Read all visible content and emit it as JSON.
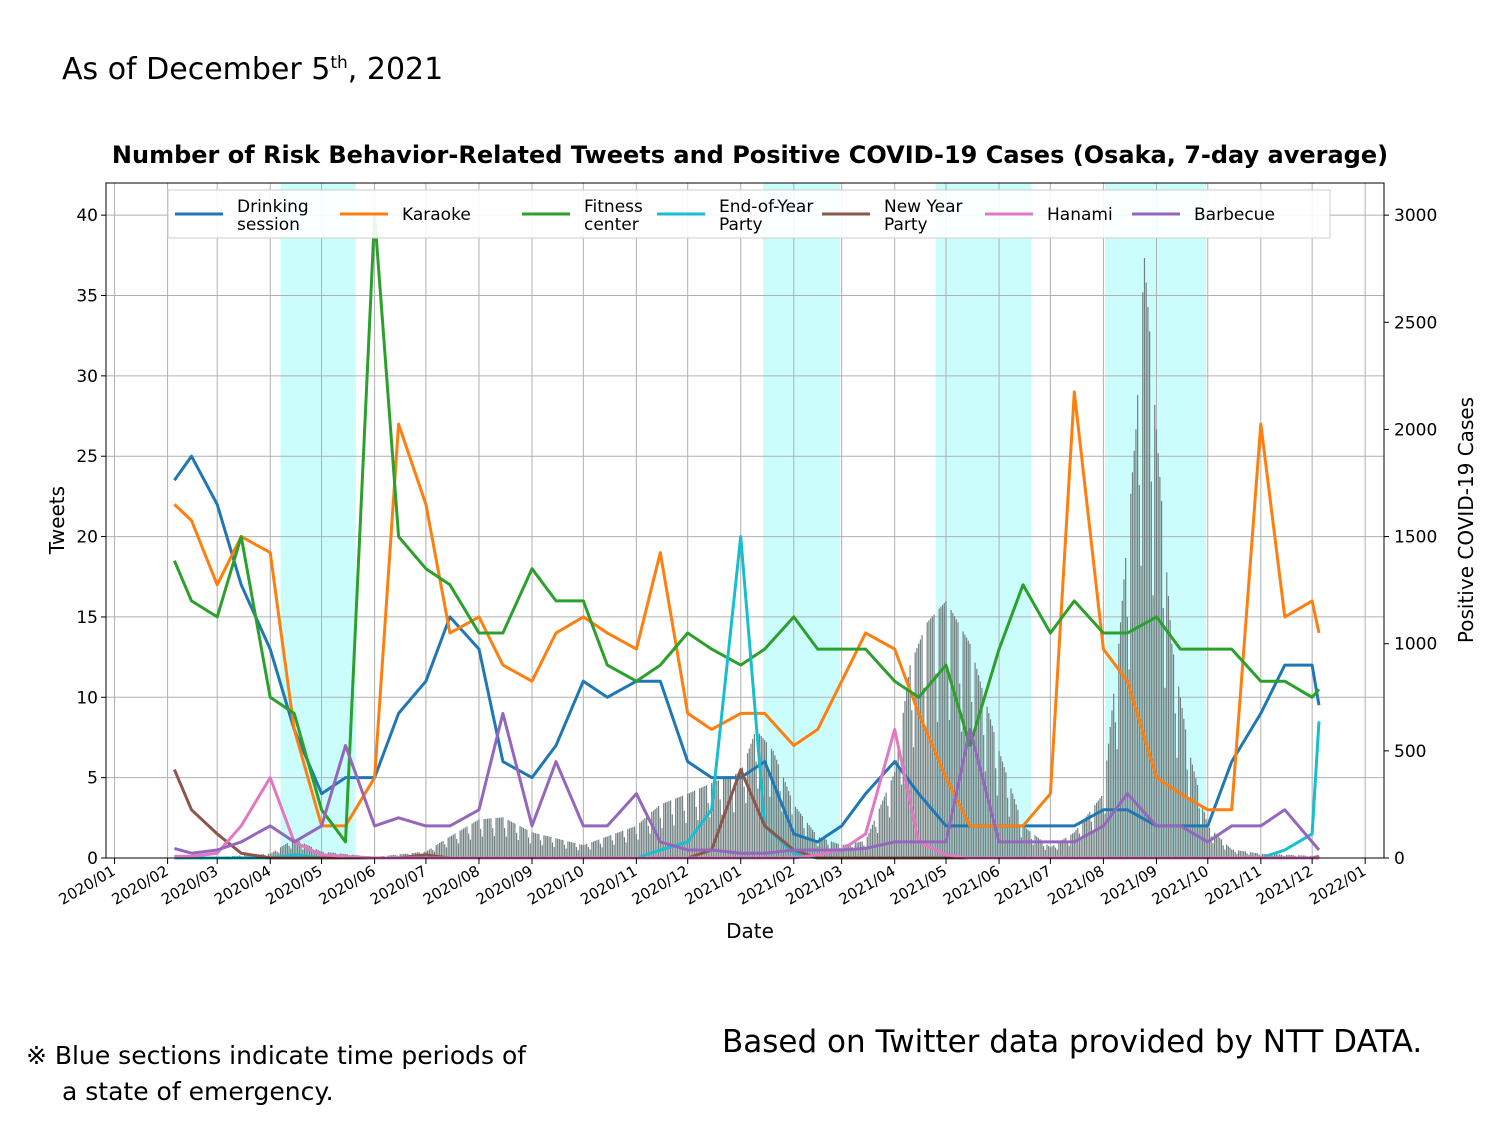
{
  "header": {
    "as_of_prefix": "As of December 5",
    "as_of_sup": "th",
    "as_of_suffix": ", 2021"
  },
  "footer": {
    "note_line1": "※ Blue sections indicate time periods of",
    "note_line2": "a state of emergency.",
    "source": "Based on Twitter data provided by NTT DATA."
  },
  "chart_data": {
    "type": "line",
    "title": "Number of Risk Behavior-Related Tweets and Positive COVID-19 Cases (Osaka, 7-day average)",
    "xlabel": "Date",
    "ylabel": "Tweets",
    "y2label": "Positive COVID-19 Cases",
    "ylim": [
      0,
      42
    ],
    "y2lim": [
      0,
      3150
    ],
    "yticks": [
      0,
      5,
      10,
      15,
      20,
      25,
      30,
      35,
      40
    ],
    "y2ticks": [
      0,
      500,
      1000,
      1500,
      2000,
      2500,
      3000
    ],
    "x_ticks": [
      "2020/01",
      "2020/02",
      "2020/03",
      "2020/04",
      "2020/05",
      "2020/06",
      "2020/07",
      "2020/08",
      "2020/09",
      "2020/10",
      "2020/11",
      "2020/12",
      "2021/01",
      "2021/02",
      "2021/03",
      "2021/04",
      "2021/05",
      "2021/06",
      "2021/07",
      "2021/08",
      "2021/09",
      "2021/10",
      "2021/11",
      "2021/12",
      "2022/01"
    ],
    "grid": true,
    "legend_position": "top",
    "emergency_periods": [
      [
        "2020/04/07",
        "2020/05/21"
      ],
      [
        "2021/01/14",
        "2021/02/28"
      ],
      [
        "2021/04/25",
        "2021/06/20"
      ],
      [
        "2021/08/02",
        "2021/09/30"
      ]
    ],
    "emergency_color": "#ccfdfd",
    "x_dates": [
      "2020/02/05",
      "2020/02/15",
      "2020/03/01",
      "2020/03/15",
      "2020/04/01",
      "2020/04/15",
      "2020/05/01",
      "2020/05/15",
      "2020/06/01",
      "2020/06/15",
      "2020/07/01",
      "2020/07/15",
      "2020/08/01",
      "2020/08/15",
      "2020/09/01",
      "2020/09/15",
      "2020/10/01",
      "2020/10/15",
      "2020/11/01",
      "2020/11/15",
      "2020/12/01",
      "2020/12/15",
      "2021/01/01",
      "2021/01/15",
      "2021/02/01",
      "2021/02/15",
      "2021/03/01",
      "2021/03/15",
      "2021/04/01",
      "2021/04/15",
      "2021/05/01",
      "2021/05/15",
      "2021/06/01",
      "2021/06/15",
      "2021/07/01",
      "2021/07/15",
      "2021/08/01",
      "2021/08/15",
      "2021/09/01",
      "2021/09/15",
      "2021/10/01",
      "2021/10/15",
      "2021/11/01",
      "2021/11/15",
      "2021/12/01",
      "2021/12/05"
    ],
    "series": [
      {
        "name": "Drinking session",
        "color": "#1f77b4",
        "values": [
          23.5,
          25,
          22,
          17,
          13,
          8,
          4,
          5,
          5,
          9,
          11,
          15,
          13,
          6,
          5,
          7,
          11,
          10,
          11,
          11,
          6,
          5,
          5,
          6,
          1.5,
          1,
          2,
          4,
          6,
          4,
          2,
          2,
          2,
          2,
          2,
          2,
          3,
          3,
          2,
          2,
          2,
          6,
          9,
          12,
          12,
          9.5
        ]
      },
      {
        "name": "Karaoke",
        "color": "#ff7f0e",
        "values": [
          22,
          21,
          17,
          20,
          19,
          8,
          2,
          2,
          5,
          27,
          22,
          14,
          15,
          12,
          11,
          14,
          15,
          14,
          13,
          19,
          9,
          8,
          9,
          9,
          7,
          8,
          11,
          14,
          13,
          9,
          5,
          2,
          2,
          2,
          4,
          29,
          13,
          11,
          5,
          4,
          3,
          3,
          27,
          15,
          16,
          14
        ]
      },
      {
        "name": "Fitness center",
        "color": "#2ca02c",
        "values": [
          18.5,
          16,
          15,
          20,
          10,
          9,
          3,
          1,
          40,
          20,
          18,
          17,
          14,
          14,
          18,
          16,
          16,
          12,
          11,
          12,
          14,
          13,
          12,
          13,
          15,
          13,
          13,
          13,
          11,
          10,
          12,
          7,
          13,
          17,
          14,
          16,
          14,
          14,
          15,
          13,
          13,
          13,
          11,
          11,
          10,
          10.5
        ]
      },
      {
        "name": "End-of-Year Party",
        "color": "#17becf",
        "values": [
          0,
          0,
          0,
          0,
          0,
          0.2,
          0,
          0,
          0,
          0,
          0,
          0,
          0,
          0,
          0,
          0,
          0,
          0,
          0,
          0.5,
          1,
          3,
          20,
          2,
          0.3,
          0,
          0,
          0,
          0,
          0,
          0,
          0,
          0,
          0,
          0,
          0,
          0,
          0,
          0,
          0,
          0,
          0,
          0,
          0.5,
          1.5,
          8.5
        ]
      },
      {
        "name": "New Year Party",
        "color": "#8c564b",
        "values": [
          5.5,
          3,
          1.5,
          0.3,
          0,
          0,
          0,
          0,
          0,
          0,
          0.2,
          0,
          0,
          0,
          0,
          0,
          0,
          0,
          0,
          0,
          0,
          0.5,
          5.5,
          2,
          0.5,
          0,
          0,
          0,
          0,
          0,
          0,
          0,
          0,
          0,
          0,
          0,
          0,
          0,
          0,
          0,
          0,
          0,
          0,
          0,
          0,
          0.1
        ]
      },
      {
        "name": "Hanami",
        "color": "#e377c2",
        "values": [
          0.1,
          0.1,
          0.3,
          2,
          5,
          1,
          0.2,
          0.1,
          0,
          0,
          0,
          0,
          0,
          0,
          0,
          0,
          0,
          0,
          0,
          0,
          0,
          0,
          0,
          0,
          0,
          0.2,
          0.5,
          1.5,
          8,
          1,
          0.2,
          0,
          0,
          0,
          0,
          0,
          0,
          0,
          0,
          0,
          0,
          0,
          0,
          0,
          0,
          0
        ]
      },
      {
        "name": "Barbecue",
        "color": "#9467bd",
        "values": [
          0.6,
          0.3,
          0.5,
          1,
          2,
          1,
          2,
          7,
          2,
          2.5,
          2,
          2,
          3,
          9,
          2,
          6,
          2,
          2,
          4,
          1,
          0.5,
          0.5,
          0.3,
          0.3,
          0.5,
          0.5,
          0.5,
          0.6,
          1,
          1,
          1,
          8,
          1,
          1,
          1,
          1,
          2,
          4,
          2,
          2,
          1,
          2,
          2,
          3,
          1,
          0.5
        ]
      }
    ],
    "positive_cases": {
      "name": "Positive COVID-19 Cases",
      "color": "#708080",
      "x_dates": [
        "2020/03/01",
        "2020/04/01",
        "2020/04/15",
        "2020/05/01",
        "2020/06/01",
        "2020/07/01",
        "2020/07/15",
        "2020/08/01",
        "2020/08/15",
        "2020/09/01",
        "2020/10/01",
        "2020/11/01",
        "2020/11/15",
        "2020/12/01",
        "2020/12/15",
        "2021/01/01",
        "2021/01/10",
        "2021/01/20",
        "2021/02/01",
        "2021/02/15",
        "2021/03/01",
        "2021/03/15",
        "2021/04/01",
        "2021/04/10",
        "2021/04/20",
        "2021/05/01",
        "2021/05/15",
        "2021/06/01",
        "2021/06/15",
        "2021/07/01",
        "2021/07/15",
        "2021/08/01",
        "2021/08/10",
        "2021/08/20",
        "2021/08/25",
        "2021/09/01",
        "2021/09/10",
        "2021/09/20",
        "2021/10/01",
        "2021/10/15",
        "2021/11/01",
        "2021/12/01",
        "2021/12/05"
      ],
      "values": [
        5,
        20,
        90,
        30,
        5,
        30,
        100,
        180,
        190,
        120,
        60,
        150,
        250,
        300,
        350,
        400,
        600,
        500,
        250,
        100,
        60,
        80,
        400,
        900,
        1100,
        1200,
        1000,
        500,
        150,
        50,
        120,
        300,
        1000,
        2000,
        2800,
        2000,
        1000,
        500,
        150,
        40,
        20,
        10,
        10
      ]
    }
  }
}
